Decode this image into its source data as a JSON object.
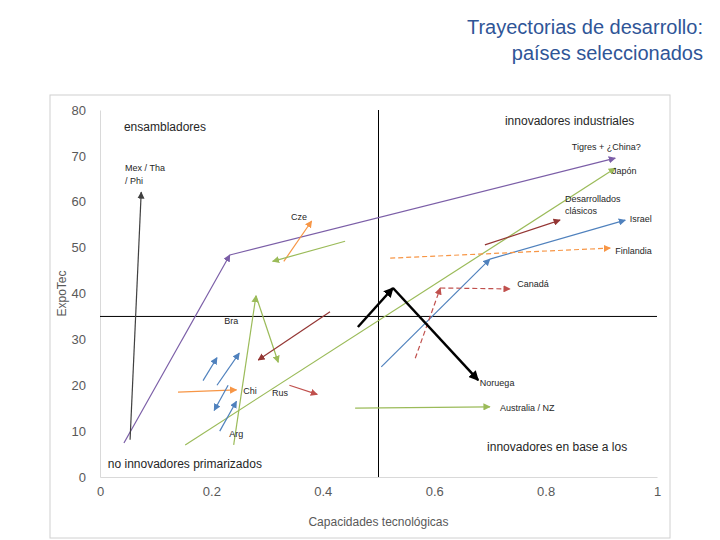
{
  "chart_data": {
    "type": "line",
    "marker": "arrow",
    "title": "Trayectorias de desarrollo:",
    "subtitle": "países seleccionados",
    "x_label": "Capacidades tecnológicas",
    "y_label": "ExpoTec",
    "xlim": [
      0,
      1
    ],
    "ylim": [
      0,
      80
    ],
    "xticks": [
      0,
      0.2,
      0.4,
      0.6,
      0.8,
      1
    ],
    "yticks": [
      0,
      10,
      20,
      30,
      40,
      50,
      60,
      70,
      80
    ],
    "grid": false,
    "quadrant_x": 0.5,
    "quadrant_y": 35,
    "series": [
      {
        "color": "#7b5ea7",
        "x": [
          0.043,
          0.233,
          0.925
        ],
        "y": [
          7.4,
          48.4,
          69.5
        ]
      },
      {
        "color": "#404040",
        "x": [
          0.054,
          0.074
        ],
        "y": [
          8.1,
          62.1
        ]
      },
      {
        "color": "#9bbb59",
        "x": [
          0.153,
          0.925
        ],
        "y": [
          7.0,
          67.3
        ]
      },
      {
        "color": "#943634",
        "x": [
          0.691,
          0.826
        ],
        "y": [
          50.6,
          56.0
        ]
      },
      {
        "color": "#4f81bd",
        "x": [
          0.505,
          0.7,
          0.943
        ],
        "y": [
          24.0,
          47.5,
          56.0
        ]
      },
      {
        "color": "#f79646",
        "line_style": "dashed",
        "x": [
          0.521,
          0.916
        ],
        "y": [
          47.7,
          49.9
        ]
      },
      {
        "color": "#c0504d",
        "line_style": "dashed",
        "x": [
          0.566,
          0.611,
          0.736
        ],
        "y": [
          25.9,
          41.2,
          41.0
        ]
      },
      {
        "color": "#000000",
        "line_style": "thick",
        "x": [
          0.463,
          0.526,
          0.679
        ],
        "y": [
          32.7,
          41.2,
          21.1
        ]
      },
      {
        "color": "#9bbb59",
        "x": [
          0.458,
          0.7
        ],
        "y": [
          15.0,
          15.3
        ]
      },
      {
        "color": "#f79646",
        "x": [
          0.33,
          0.38
        ],
        "y": [
          47.0,
          55.8
        ]
      },
      {
        "color": "#9bbb59",
        "x": [
          0.44,
          0.31
        ],
        "y": [
          51.4,
          47.0
        ]
      },
      {
        "color": "#9bbb59",
        "x": [
          0.24,
          0.28,
          0.32
        ],
        "y": [
          7.0,
          39.5,
          25.0
        ]
      },
      {
        "color": "#943634",
        "x": [
          0.413,
          0.284
        ],
        "y": [
          36.0,
          25.5
        ]
      },
      {
        "color": "#c0504d",
        "x": [
          0.34,
          0.39
        ],
        "y": [
          20.0,
          18.0
        ]
      },
      {
        "color": "#f79646",
        "x": [
          0.14,
          0.245
        ],
        "y": [
          18.5,
          19.0
        ]
      },
      {
        "color": "#4f81bd",
        "x": [
          0.185,
          0.21
        ],
        "y": [
          21.0,
          26.0
        ]
      },
      {
        "color": "#4f81bd",
        "x": [
          0.21,
          0.25
        ],
        "y": [
          20.0,
          27.0
        ]
      },
      {
        "color": "#4f81bd",
        "x": [
          0.23,
          0.205
        ],
        "y": [
          20.0,
          14.5
        ]
      },
      {
        "color": "#4f81bd",
        "x": [
          0.215,
          0.245
        ],
        "y": [
          10.0,
          16.5
        ]
      }
    ],
    "quadrant_labels": [
      {
        "text": "ensambladores",
        "x": 0.043,
        "y": 75.4
      },
      {
        "text": "innovadores industriales",
        "x": 0.727,
        "y": 76.7
      },
      {
        "text": "innovadores en base a los",
        "x": 0.695,
        "y": 5.7
      },
      {
        "text": "no innovadores primarizados",
        "x": 0.014,
        "y": 2.0
      }
    ],
    "annotations": [
      {
        "text": "Tigres + ¿China?",
        "x": 0.847,
        "y": 71.3
      },
      {
        "text": "Mex / Tha",
        "x": 0.045,
        "y": 66.7
      },
      {
        "text": "/ Phi",
        "x": 0.045,
        "y": 63.9
      },
      {
        "text": "Japón",
        "x": 0.919,
        "y": 66.0
      },
      {
        "text": "Desarrollados",
        "x": 0.835,
        "y": 59.9
      },
      {
        "text": "clásicos",
        "x": 0.835,
        "y": 57.3
      },
      {
        "text": "Israel",
        "x": 0.951,
        "y": 55.6
      },
      {
        "text": "Cze",
        "x": 0.343,
        "y": 56.0
      },
      {
        "text": "Finlandia",
        "x": 0.925,
        "y": 48.6
      },
      {
        "text": "Canadá",
        "x": 0.749,
        "y": 41.4
      },
      {
        "text": "Bra",
        "x": 0.223,
        "y": 33.4
      },
      {
        "text": "Chi",
        "x": 0.257,
        "y": 18.1
      },
      {
        "text": "Rus",
        "x": 0.309,
        "y": 17.7
      },
      {
        "text": "Noruega",
        "x": 0.682,
        "y": 19.8
      },
      {
        "text": "Australia / NZ",
        "x": 0.718,
        "y": 14.4
      },
      {
        "text": "Arg",
        "x": 0.232,
        "y": 8.7
      }
    ]
  }
}
